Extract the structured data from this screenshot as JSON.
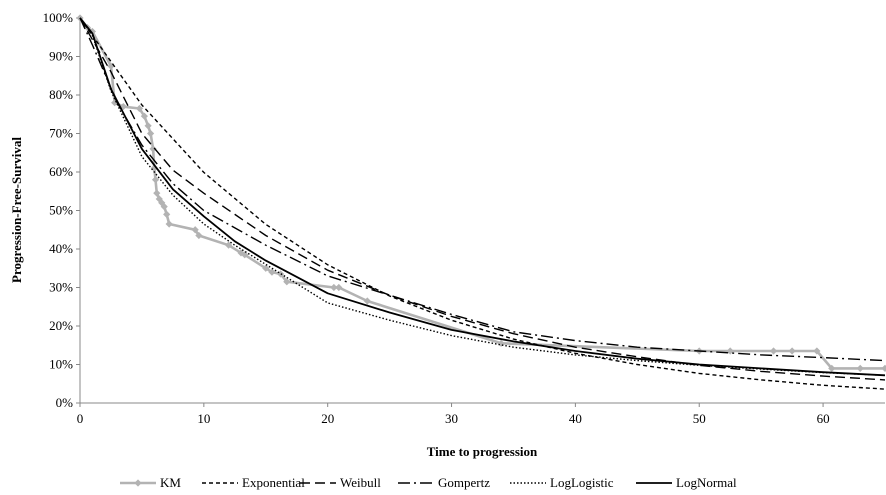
{
  "chart_data": {
    "type": "line",
    "title": "",
    "xlabel": "Time to progression",
    "ylabel": "Progression-Free-Survival",
    "xlim": [
      0,
      65
    ],
    "ylim": [
      0,
      1
    ],
    "x_ticks": [
      0,
      10,
      20,
      30,
      40,
      50,
      60
    ],
    "x_tick_labels": [
      "0",
      "10",
      "20",
      "30",
      "40",
      "50",
      "60"
    ],
    "y_ticks": [
      0,
      0.1,
      0.2,
      0.3,
      0.4,
      0.5,
      0.6,
      0.7,
      0.8,
      0.9,
      1.0
    ],
    "y_tick_labels": [
      "0%",
      "10%",
      "20%",
      "30%",
      "40%",
      "50%",
      "60%",
      "70%",
      "80%",
      "90%",
      "100%"
    ],
    "grid": false,
    "legend_position": "bottom",
    "series": [
      {
        "name": "KM",
        "color": "#b3b3b3",
        "style": "solid-markers",
        "points": [
          [
            0,
            1.0
          ],
          [
            0.6,
            0.975
          ],
          [
            1.0,
            0.965
          ],
          [
            2.5,
            0.875
          ],
          [
            2.8,
            0.78
          ],
          [
            3.5,
            0.77
          ],
          [
            4.8,
            0.765
          ],
          [
            5.2,
            0.745
          ],
          [
            5.5,
            0.72
          ],
          [
            5.7,
            0.7
          ],
          [
            5.9,
            0.66
          ],
          [
            6.0,
            0.61
          ],
          [
            6.1,
            0.58
          ],
          [
            6.2,
            0.545
          ],
          [
            6.4,
            0.53
          ],
          [
            6.6,
            0.52
          ],
          [
            6.8,
            0.51
          ],
          [
            7.0,
            0.49
          ],
          [
            7.2,
            0.465
          ],
          [
            9.3,
            0.45
          ],
          [
            9.6,
            0.435
          ],
          [
            12.0,
            0.41
          ],
          [
            13.0,
            0.39
          ],
          [
            13.3,
            0.385
          ],
          [
            15.0,
            0.35
          ],
          [
            15.5,
            0.34
          ],
          [
            16.2,
            0.335
          ],
          [
            16.7,
            0.315
          ],
          [
            20.5,
            0.3
          ],
          [
            20.9,
            0.3
          ],
          [
            23.2,
            0.265
          ],
          [
            34.0,
            0.155
          ],
          [
            50.0,
            0.135
          ],
          [
            52.5,
            0.135
          ],
          [
            56.0,
            0.135
          ],
          [
            57.5,
            0.135
          ],
          [
            59.5,
            0.135
          ],
          [
            60.7,
            0.09
          ],
          [
            63.0,
            0.09
          ],
          [
            65.0,
            0.09
          ]
        ]
      },
      {
        "name": "Exponential",
        "color": "#000000",
        "style": "short-dash",
        "points": [
          [
            0,
            1.0
          ],
          [
            5,
            0.774
          ],
          [
            10,
            0.599
          ],
          [
            15,
            0.464
          ],
          [
            20,
            0.359
          ],
          [
            25,
            0.278
          ],
          [
            30,
            0.215
          ],
          [
            35,
            0.166
          ],
          [
            40,
            0.129
          ],
          [
            45,
            0.1
          ],
          [
            50,
            0.077
          ],
          [
            55,
            0.06
          ],
          [
            60,
            0.046
          ],
          [
            65,
            0.036
          ]
        ]
      },
      {
        "name": "Weibull",
        "color": "#000000",
        "style": "long-dash",
        "points": [
          [
            0,
            1.0
          ],
          [
            2.5,
            0.86
          ],
          [
            5,
            0.7
          ],
          [
            7.5,
            0.605
          ],
          [
            10,
            0.545
          ],
          [
            15,
            0.435
          ],
          [
            20,
            0.345
          ],
          [
            25,
            0.28
          ],
          [
            30,
            0.225
          ],
          [
            35,
            0.18
          ],
          [
            40,
            0.145
          ],
          [
            45,
            0.12
          ],
          [
            50,
            0.098
          ],
          [
            55,
            0.082
          ],
          [
            60,
            0.07
          ],
          [
            65,
            0.06
          ]
        ]
      },
      {
        "name": "Gompertz",
        "color": "#000000",
        "style": "dash-dot",
        "points": [
          [
            0,
            1.0
          ],
          [
            1,
            0.93
          ],
          [
            3,
            0.78
          ],
          [
            5,
            0.67
          ],
          [
            7.5,
            0.57
          ],
          [
            10,
            0.5
          ],
          [
            15,
            0.41
          ],
          [
            20,
            0.33
          ],
          [
            25,
            0.28
          ],
          [
            30,
            0.23
          ],
          [
            35,
            0.185
          ],
          [
            40,
            0.162
          ],
          [
            45,
            0.145
          ],
          [
            50,
            0.135
          ],
          [
            55,
            0.125
          ],
          [
            60,
            0.118
          ],
          [
            65,
            0.11
          ]
        ]
      },
      {
        "name": "LogLogistic",
        "color": "#000000",
        "style": "dotted",
        "points": [
          [
            0,
            1.0
          ],
          [
            1,
            0.955
          ],
          [
            2.5,
            0.81
          ],
          [
            5,
            0.64
          ],
          [
            7.5,
            0.54
          ],
          [
            10,
            0.465
          ],
          [
            12.5,
            0.41
          ],
          [
            15,
            0.36
          ],
          [
            20,
            0.26
          ],
          [
            25,
            0.215
          ],
          [
            30,
            0.175
          ],
          [
            35,
            0.145
          ],
          [
            40,
            0.125
          ],
          [
            45,
            0.11
          ],
          [
            50,
            0.098
          ],
          [
            55,
            0.088
          ],
          [
            60,
            0.079
          ],
          [
            65,
            0.072
          ]
        ]
      },
      {
        "name": "LogNormal",
        "color": "#000000",
        "style": "solid",
        "points": [
          [
            0,
            1.0
          ],
          [
            1,
            0.96
          ],
          [
            2.5,
            0.815
          ],
          [
            5,
            0.66
          ],
          [
            7.5,
            0.555
          ],
          [
            10,
            0.485
          ],
          [
            12.5,
            0.42
          ],
          [
            15,
            0.37
          ],
          [
            20,
            0.285
          ],
          [
            25,
            0.235
          ],
          [
            30,
            0.19
          ],
          [
            35,
            0.16
          ],
          [
            40,
            0.135
          ],
          [
            45,
            0.115
          ],
          [
            50,
            0.1
          ],
          [
            55,
            0.09
          ],
          [
            60,
            0.08
          ],
          [
            65,
            0.072
          ]
        ]
      }
    ]
  }
}
